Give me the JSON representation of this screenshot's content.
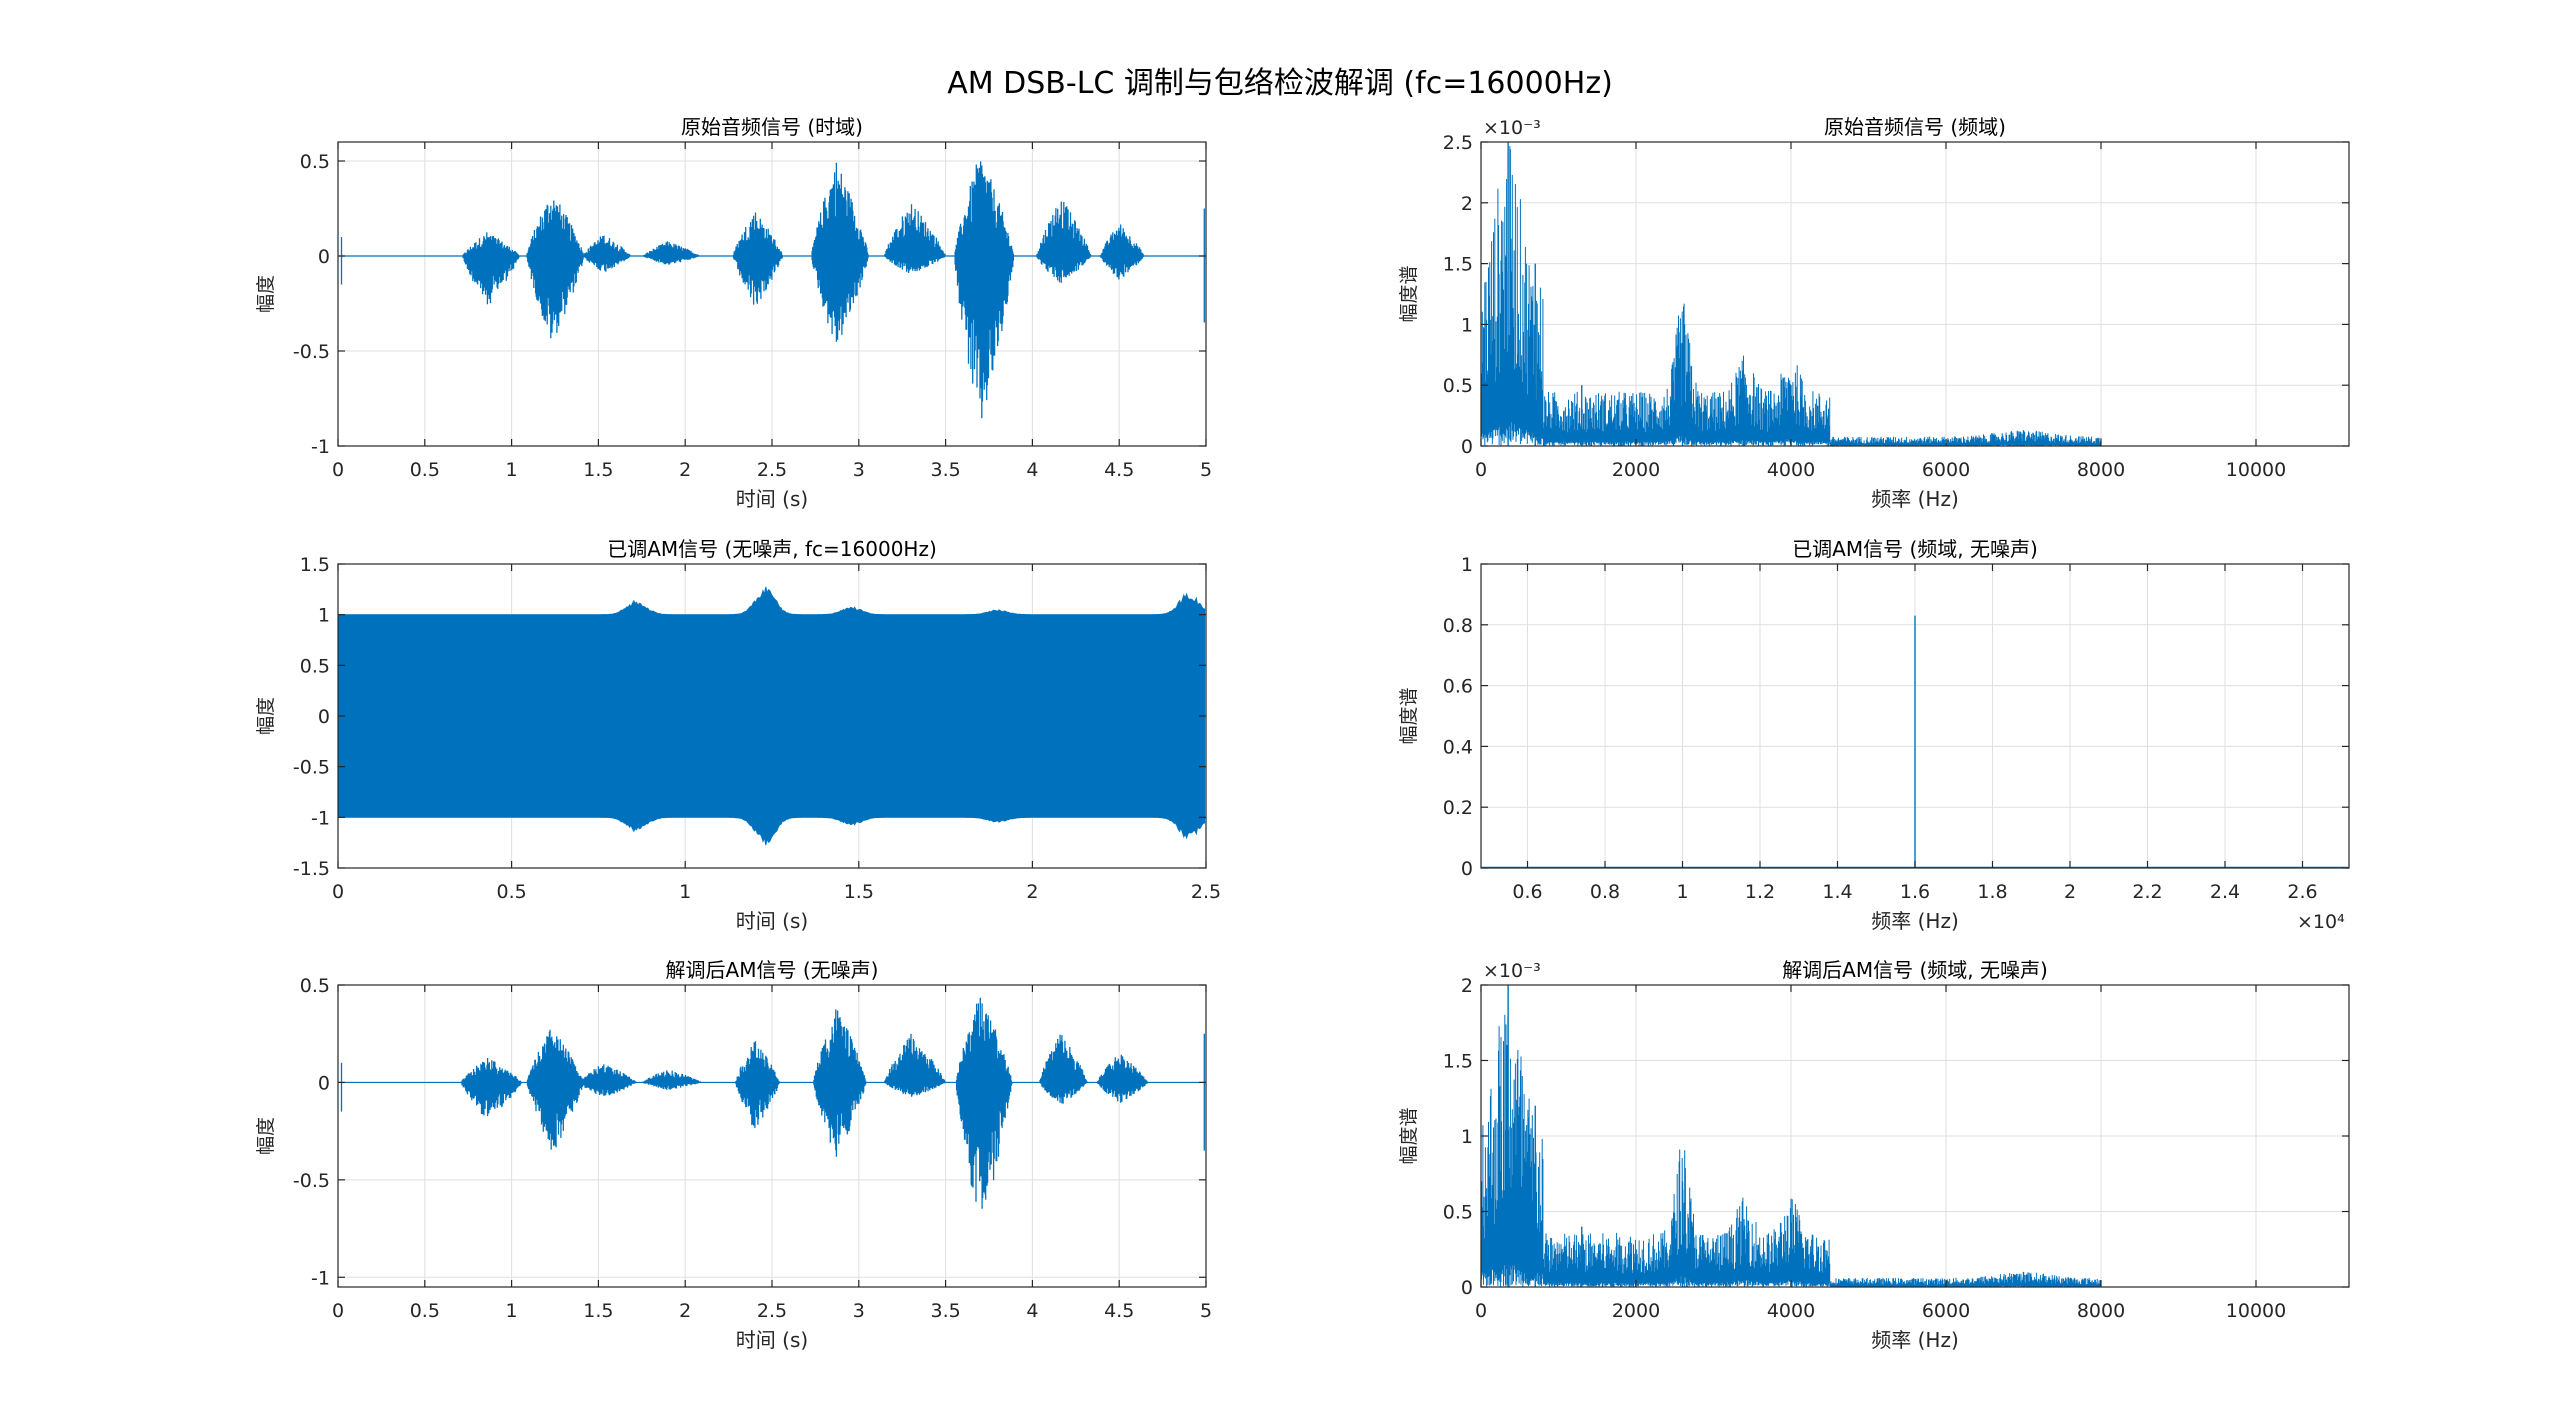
{
  "figure": {
    "title": "AM DSB-LC 调制与包络检波解调 (fc=16000Hz)",
    "colors": {
      "line": "#0072BD",
      "axis": "#262626",
      "grid": "#DFDFDF",
      "background": "#FFFFFF"
    }
  },
  "chart_data": [
    {
      "id": "p1",
      "type": "line",
      "title": "原始音频信号 (时域)",
      "xlabel": "时间 (s)",
      "ylabel": "幅度",
      "xlim": [
        0,
        5
      ],
      "ylim": [
        -1,
        0.6
      ],
      "xticks": [
        0,
        0.5,
        1,
        1.5,
        2,
        2.5,
        3,
        3.5,
        4,
        4.5,
        5
      ],
      "xtick_labels": [
        "0",
        "0.5",
        "1",
        "1.5",
        "2",
        "2.5",
        "3",
        "3.5",
        "4",
        "4.5",
        "5"
      ],
      "yticks": [
        -1,
        -0.5,
        0,
        0.5
      ],
      "ytick_labels": [
        "-1",
        "-0.5",
        "0",
        "0.5"
      ],
      "grid": true,
      "signal": "audio-waveform",
      "envelope": [
        [
          0.86,
          0.13,
          -0.27
        ],
        [
          1.23,
          0.35,
          -0.47
        ],
        [
          1.53,
          0.12,
          -0.09
        ],
        [
          1.9,
          0.08,
          -0.05
        ],
        [
          2.4,
          0.25,
          -0.28
        ],
        [
          2.87,
          0.52,
          -0.5
        ],
        [
          3.3,
          0.29,
          -0.1
        ],
        [
          3.7,
          0.55,
          -0.95
        ],
        [
          4.16,
          0.32,
          -0.15
        ],
        [
          4.5,
          0.18,
          -0.13
        ]
      ],
      "series": [
        {
          "values": "band-limited audio envelope (time domain)"
        }
      ]
    },
    {
      "id": "p2",
      "type": "line",
      "title": "原始音频信号 (频域)",
      "xlabel": "频率 (Hz)",
      "ylabel": "幅度谱",
      "xlim": [
        0,
        11200
      ],
      "ylim": [
        0,
        0.0025
      ],
      "exponent_label": "×10⁻³",
      "xticks": [
        0,
        2000,
        4000,
        6000,
        8000,
        10000
      ],
      "xtick_labels": [
        "0",
        "2000",
        "4000",
        "6000",
        "8000",
        "10000"
      ],
      "yticks": [
        0,
        0.0005,
        0.001,
        0.0015,
        0.002,
        0.0025
      ],
      "ytick_labels": [
        "0",
        "0.5",
        "1",
        "1.5",
        "2",
        "2.5"
      ],
      "grid": true,
      "signal": "spectrum",
      "peaks": [
        [
          350,
          0.0025
        ],
        [
          700,
          0.0015
        ],
        [
          1300,
          0.0005
        ],
        [
          2600,
          0.00085
        ],
        [
          3400,
          0.0005
        ],
        [
          4000,
          0.0005
        ],
        [
          7000,
          0.00013
        ]
      ]
    },
    {
      "id": "p3",
      "type": "line",
      "title": "已调AM信号 (无噪声, fc=16000Hz)",
      "xlabel": "时间 (s)",
      "ylabel": "幅度",
      "xlim": [
        0,
        2.5
      ],
      "ylim": [
        -1.5,
        1.5
      ],
      "xticks": [
        0,
        0.5,
        1,
        1.5,
        2,
        2.5
      ],
      "xtick_labels": [
        "0",
        "0.5",
        "1",
        "1.5",
        "2",
        "2.5"
      ],
      "yticks": [
        -1.5,
        -1,
        -0.5,
        0,
        0.5,
        1,
        1.5
      ],
      "ytick_labels": [
        "-1.5",
        "-1",
        "-0.5",
        "0",
        "0.5",
        "1",
        "1.5"
      ],
      "grid": true,
      "signal": "am-carrier",
      "envelope": [
        [
          0.86,
          1.15
        ],
        [
          1.23,
          1.28
        ],
        [
          1.48,
          1.08
        ],
        [
          1.9,
          1.05
        ],
        [
          2.45,
          1.22
        ]
      ]
    },
    {
      "id": "p4",
      "type": "line",
      "title": "已调AM信号 (频域, 无噪声)",
      "xlabel": "频率 (Hz)",
      "ylabel": "幅度谱",
      "xlim": [
        4800,
        27200
      ],
      "ylim": [
        0,
        1
      ],
      "exponent_label": "×10⁴",
      "xticks": [
        6000,
        8000,
        10000,
        12000,
        14000,
        16000,
        18000,
        20000,
        22000,
        24000,
        26000
      ],
      "xtick_labels": [
        "0.6",
        "0.8",
        "1",
        "1.2",
        "1.4",
        "1.6",
        "1.8",
        "2",
        "2.2",
        "2.4",
        "2.6"
      ],
      "yticks": [
        0,
        0.2,
        0.4,
        0.6,
        0.8,
        1
      ],
      "ytick_labels": [
        "0",
        "0.2",
        "0.4",
        "0.6",
        "0.8",
        "1"
      ],
      "grid": true,
      "signal": "carrier-spike",
      "peaks": [
        [
          16000,
          0.83
        ]
      ]
    },
    {
      "id": "p5",
      "type": "line",
      "title": "解调后AM信号 (无噪声)",
      "xlabel": "时间 (s)",
      "ylabel": "幅度",
      "xlim": [
        0,
        5
      ],
      "ylim": [
        -1.05,
        0.5
      ],
      "xticks": [
        0,
        0.5,
        1,
        1.5,
        2,
        2.5,
        3,
        3.5,
        4,
        4.5,
        5
      ],
      "xtick_labels": [
        "0",
        "0.5",
        "1",
        "1.5",
        "2",
        "2.5",
        "3",
        "3.5",
        "4",
        "4.5",
        "5"
      ],
      "yticks": [
        -1,
        -0.5,
        0,
        0.5
      ],
      "ytick_labels": [
        "-1",
        "-0.5",
        "0",
        "0.5"
      ],
      "grid": true,
      "signal": "audio-waveform",
      "envelope": [
        [
          0.86,
          0.13,
          -0.2
        ],
        [
          1.23,
          0.29,
          -0.38
        ],
        [
          1.53,
          0.1,
          -0.08
        ],
        [
          1.9,
          0.07,
          -0.04
        ],
        [
          2.4,
          0.22,
          -0.25
        ],
        [
          2.87,
          0.4,
          -0.4
        ],
        [
          3.3,
          0.25,
          -0.08
        ],
        [
          3.7,
          0.47,
          -0.78
        ],
        [
          4.16,
          0.27,
          -0.12
        ],
        [
          4.5,
          0.16,
          -0.11
        ]
      ],
      "series": [
        {
          "values": "demodulated audio envelope (time domain)"
        }
      ]
    },
    {
      "id": "p6",
      "type": "line",
      "title": "解调后AM信号 (频域, 无噪声)",
      "xlabel": "频率 (Hz)",
      "ylabel": "幅度谱",
      "xlim": [
        0,
        11200
      ],
      "ylim": [
        0,
        0.002
      ],
      "exponent_label": "×10⁻³",
      "xticks": [
        0,
        2000,
        4000,
        6000,
        8000,
        10000
      ],
      "xtick_labels": [
        "0",
        "2000",
        "4000",
        "6000",
        "8000",
        "10000"
      ],
      "yticks": [
        0,
        0.0005,
        0.001,
        0.0015,
        0.002
      ],
      "ytick_labels": [
        "0",
        "0.5",
        "1",
        "1.5",
        "2"
      ],
      "grid": true,
      "signal": "spectrum",
      "peaks": [
        [
          350,
          0.002
        ],
        [
          700,
          0.0012
        ],
        [
          1300,
          0.0004
        ],
        [
          2600,
          0.0007
        ],
        [
          3400,
          0.0004
        ],
        [
          4000,
          0.0004
        ],
        [
          7000,
          0.0001
        ]
      ]
    }
  ]
}
